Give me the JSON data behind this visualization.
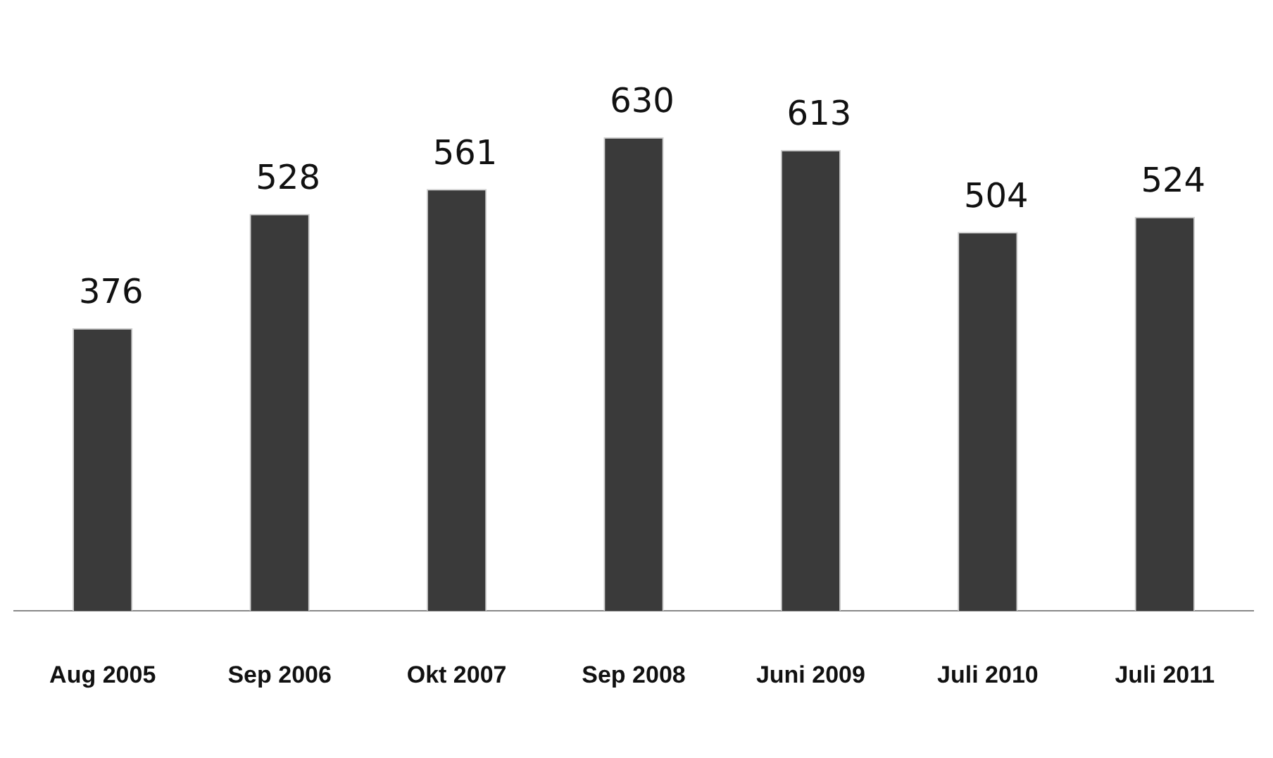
{
  "chart_data": {
    "type": "bar",
    "categories": [
      "Aug 2005",
      "Sep 2006",
      "Okt 2007",
      "Sep 2008",
      "Juni 2009",
      "Juli 2010",
      "Juli 2011"
    ],
    "values": [
      376,
      528,
      561,
      630,
      613,
      504,
      524
    ],
    "color": "#3a3a3a",
    "data_labels": true,
    "grid": false,
    "legend": false
  }
}
